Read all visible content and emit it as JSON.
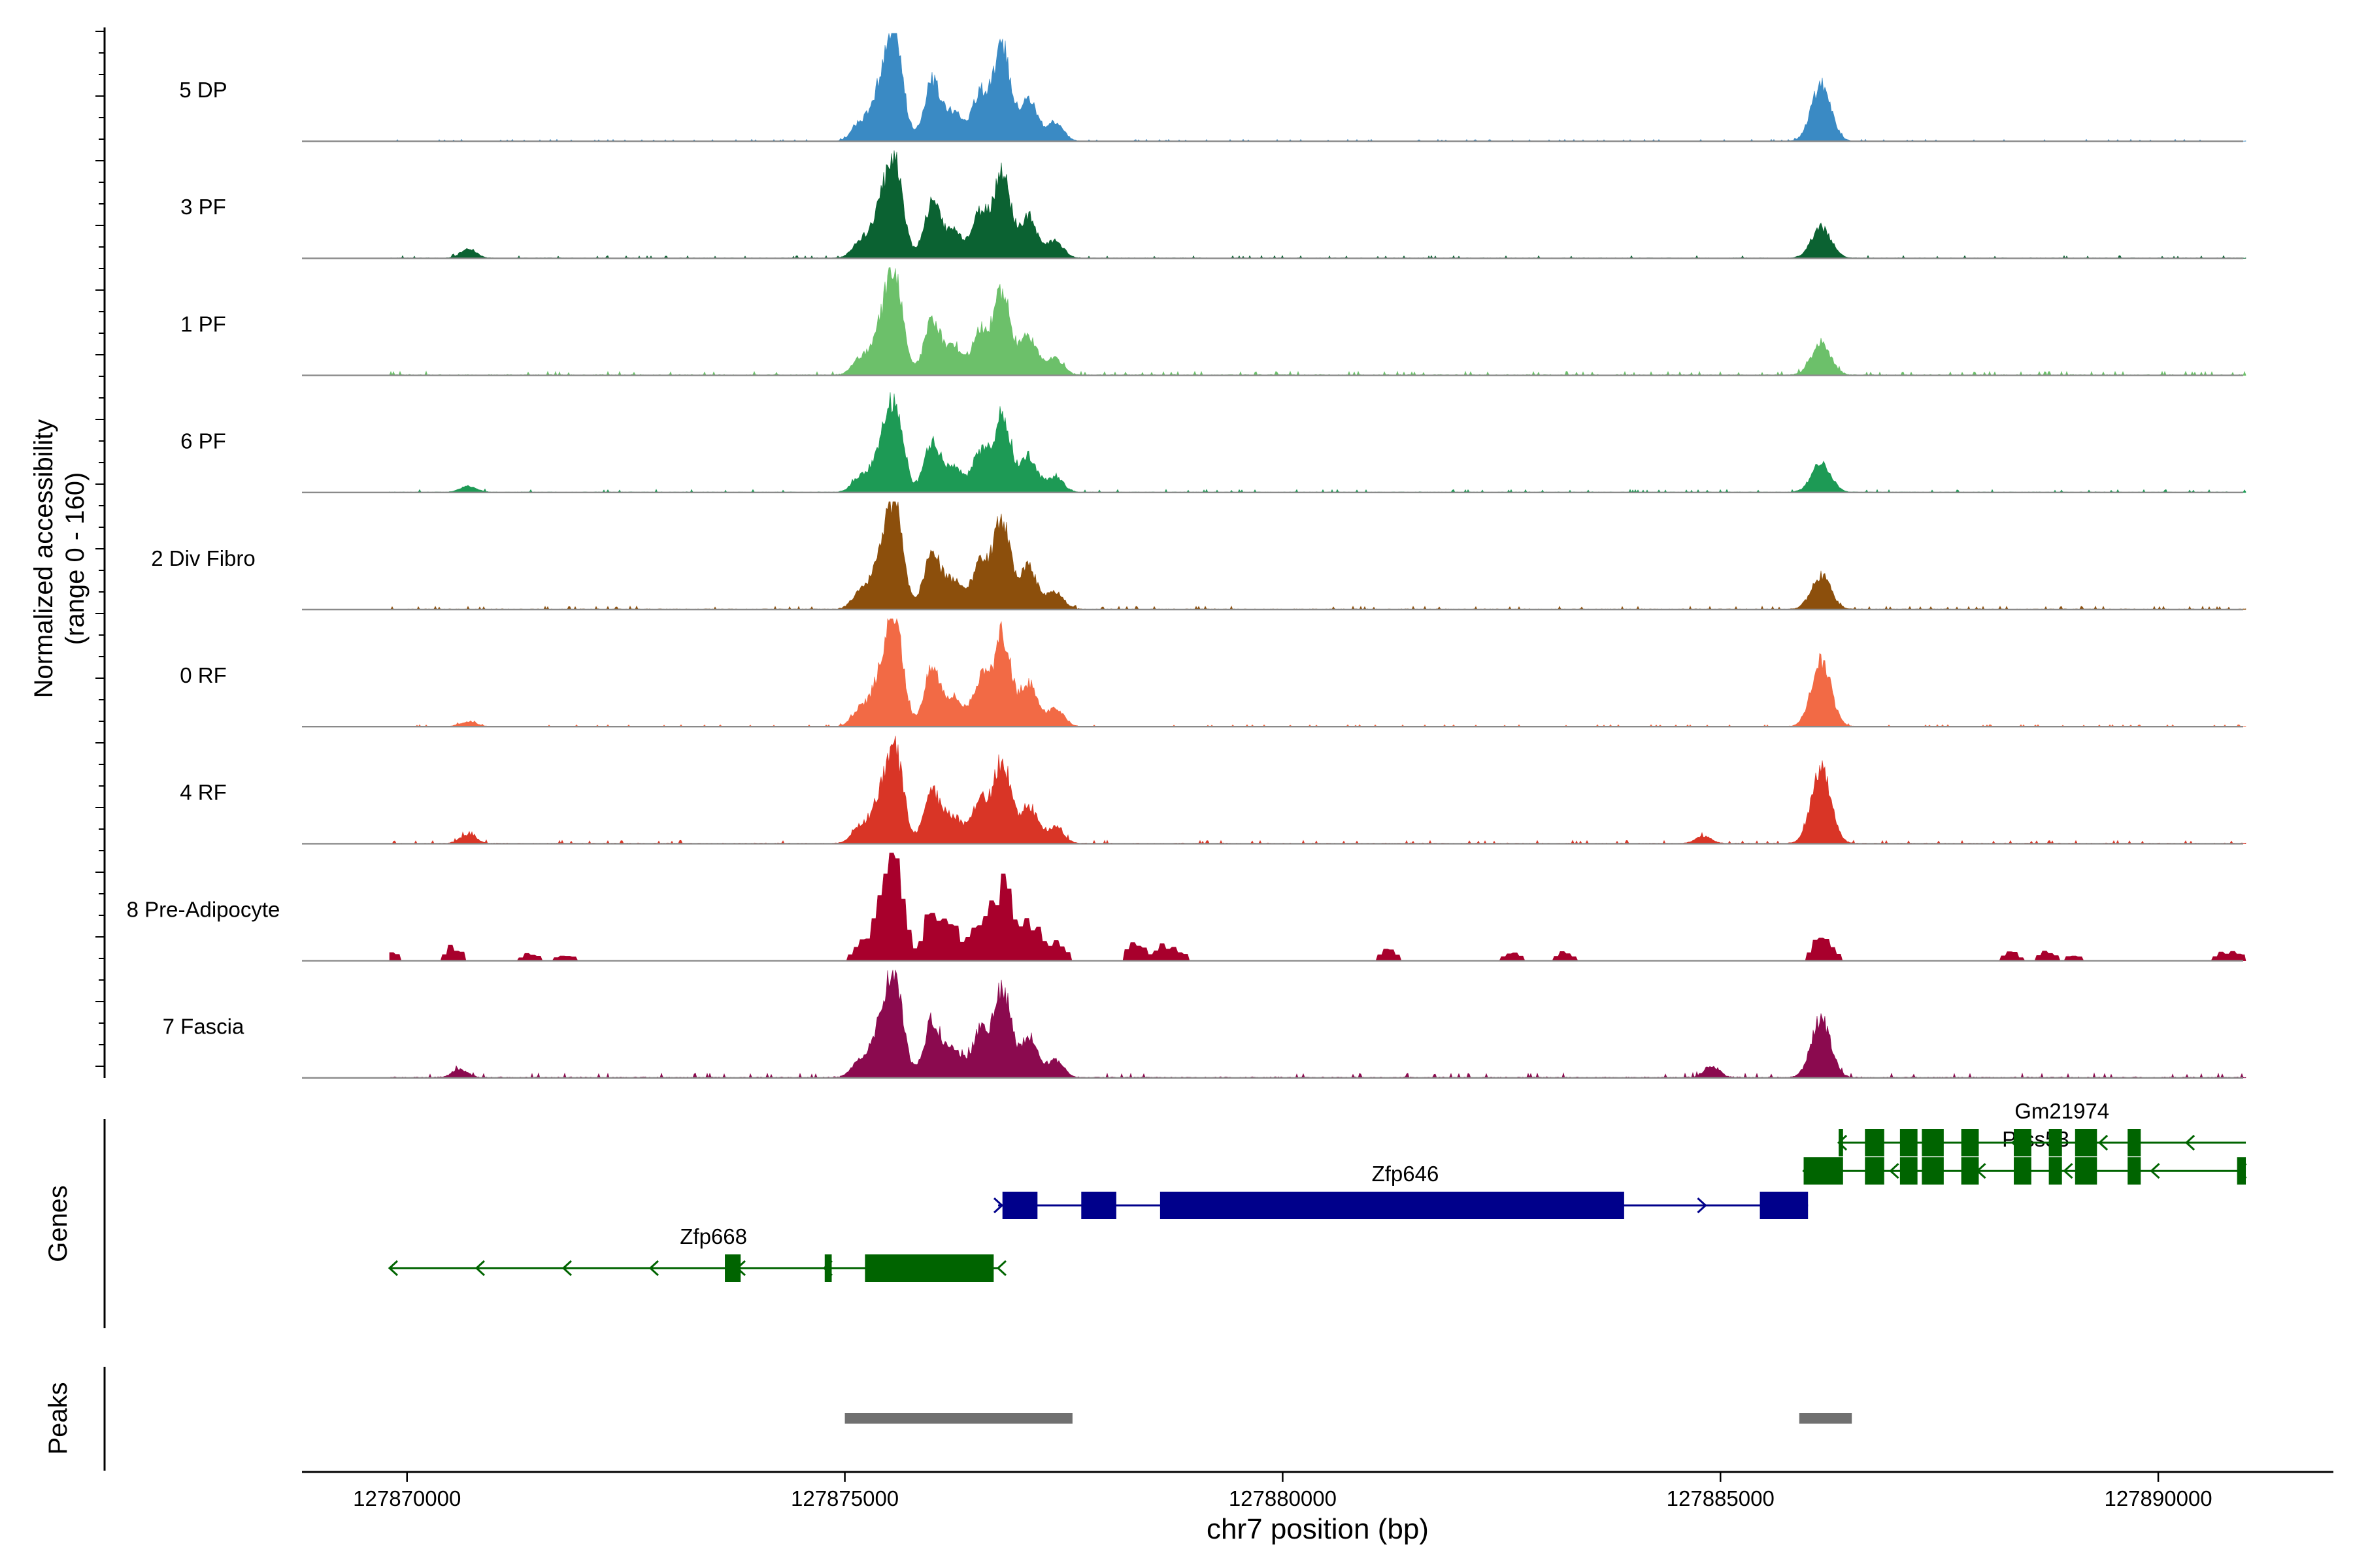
{
  "chart_data": {
    "type": "area",
    "title": "",
    "chrom": "chr7",
    "xlabel": "chr7 position (bp)",
    "ylabel_line1": "Normalized accessibility",
    "ylabel_line2": "(range 0 - 160)",
    "ylim": [
      0,
      160
    ],
    "xlim": [
      127868800,
      127892000
    ],
    "x_ticks": [
      127870000,
      127875000,
      127880000,
      127885000,
      127890000
    ],
    "x_tick_labels": [
      "127870000",
      "127875000",
      "127880000",
      "127885000",
      "127890000"
    ],
    "track_labels": {
      "genes": "Genes",
      "peaks": "Peaks"
    },
    "tracks": [
      {
        "name": "5 DP",
        "color": "#3a8ac4",
        "scale": 1.0,
        "bg": 0.55,
        "style": "smooth",
        "peak2": 0.55,
        "bumps": [],
        "seed": 11
      },
      {
        "name": "3 PF",
        "color": "#0b6232",
        "scale": 0.92,
        "bg": 0.8,
        "style": "smooth",
        "peak2": 0.3,
        "bumps": [
          [
            127870700,
            0.09
          ]
        ],
        "seed": 23
      },
      {
        "name": "1 PF",
        "color": "#6cc06a",
        "scale": 0.9,
        "bg": 1.2,
        "style": "smooth",
        "peak2": 0.3,
        "bumps": [],
        "seed": 37
      },
      {
        "name": "6 PF",
        "color": "#1d9a55",
        "scale": 0.82,
        "bg": 0.9,
        "style": "smooth",
        "peak2": 0.28,
        "bumps": [
          [
            127870700,
            0.06
          ]
        ],
        "seed": 41
      },
      {
        "name": "2 Div Fibro",
        "color": "#8c4f0c",
        "scale": 0.98,
        "bg": 1.0,
        "style": "smooth",
        "peak2": 0.33,
        "bumps": [],
        "seed": 53
      },
      {
        "name": "0 RF",
        "color": "#f26a45",
        "scale": 0.98,
        "bg": 0.6,
        "style": "smooth",
        "peak2": 0.64,
        "bumps": [
          [
            127870700,
            0.05
          ]
        ],
        "seed": 67
      },
      {
        "name": "4 RF",
        "color": "#d93526",
        "scale": 0.88,
        "bg": 1.0,
        "style": "smooth",
        "peak2": 0.72,
        "bumps": [
          [
            127870700,
            0.09
          ],
          [
            127884800,
            0.07
          ]
        ],
        "seed": 71
      },
      {
        "name": "8 Pre-Adipocyte",
        "color": "#a8002c",
        "scale": 0.94,
        "bg": 0.0,
        "style": "blocky",
        "peak2": 0.25,
        "bumps": [
          [
            127869800,
            0.08
          ],
          [
            127870500,
            0.14
          ],
          [
            127871400,
            0.07
          ],
          [
            127871800,
            0.06
          ],
          [
            127878300,
            0.17
          ],
          [
            127878600,
            0.13
          ],
          [
            127878800,
            0.09
          ],
          [
            127881200,
            0.12
          ],
          [
            127882600,
            0.07
          ],
          [
            127883200,
            0.08
          ],
          [
            127888300,
            0.08
          ],
          [
            127888700,
            0.09
          ],
          [
            127889000,
            0.06
          ],
          [
            127890700,
            0.07
          ],
          [
            127890900,
            0.07
          ]
        ],
        "seed": 83
      },
      {
        "name": "7 Fascia",
        "color": "#8b0a4f",
        "scale": 0.95,
        "bg": 1.4,
        "style": "smooth",
        "peak2": 0.57,
        "bumps": [
          [
            127870600,
            0.08
          ],
          [
            127884900,
            0.11
          ]
        ],
        "seed": 97
      }
    ],
    "main_peaks": [
      [
        127875180,
        0.18
      ],
      [
        127875400,
        0.42
      ],
      [
        127875570,
        1.0
      ],
      [
        127876000,
        0.58
      ],
      [
        127876250,
        0.28
      ],
      [
        127876550,
        0.47
      ],
      [
        127876800,
        0.9
      ],
      [
        127877100,
        0.42
      ],
      [
        127877400,
        0.18
      ]
    ],
    "second_peak_pos": 127886150,
    "genes": [
      {
        "name": "Zfp668",
        "strand": "-",
        "color": "#006400",
        "start": 127869800,
        "end": 127876750,
        "row": 2,
        "label_pos": 127873500,
        "exons": [
          [
            127873630,
            127873810
          ],
          [
            127874770,
            127874850
          ],
          [
            127875230,
            127876700
          ]
        ]
      },
      {
        "name": "Zfp646",
        "strand": "+",
        "color": "#00008b",
        "start": 127876750,
        "end": 127886000,
        "row": 1,
        "label_pos": 127881400,
        "exons": [
          [
            127876800,
            127877200
          ],
          [
            127877700,
            127878100
          ],
          [
            127878600,
            127883900
          ],
          [
            127885450,
            127886000
          ]
        ]
      },
      {
        "name": "Prss53",
        "strand": "-",
        "color": "#006400",
        "start": 127885950,
        "end": 127891000,
        "row": 0.45,
        "label_pos": 127888600,
        "exons": [
          [
            127885950,
            127886400
          ],
          [
            127886650,
            127886870
          ],
          [
            127887050,
            127887250
          ],
          [
            127887300,
            127887550
          ],
          [
            127887750,
            127887950
          ],
          [
            127888350,
            127888550
          ],
          [
            127888750,
            127888900
          ],
          [
            127889050,
            127889300
          ],
          [
            127889650,
            127889800
          ],
          [
            127890900,
            127891000
          ]
        ]
      },
      {
        "name": "Gm21974",
        "strand": "-",
        "color": "#006400",
        "start": 127886350,
        "end": 127891000,
        "row": 0,
        "label_pos": 127888900,
        "exons": [
          [
            127886350,
            127886400
          ],
          [
            127886650,
            127886870
          ],
          [
            127887050,
            127887250
          ],
          [
            127887300,
            127887550
          ],
          [
            127887750,
            127887950
          ],
          [
            127888350,
            127888550
          ],
          [
            127888750,
            127888900
          ],
          [
            127889050,
            127889300
          ],
          [
            127889650,
            127889800
          ]
        ]
      }
    ],
    "peaks": [
      [
        127875000,
        127877600
      ],
      [
        127885900,
        127886500
      ]
    ]
  }
}
